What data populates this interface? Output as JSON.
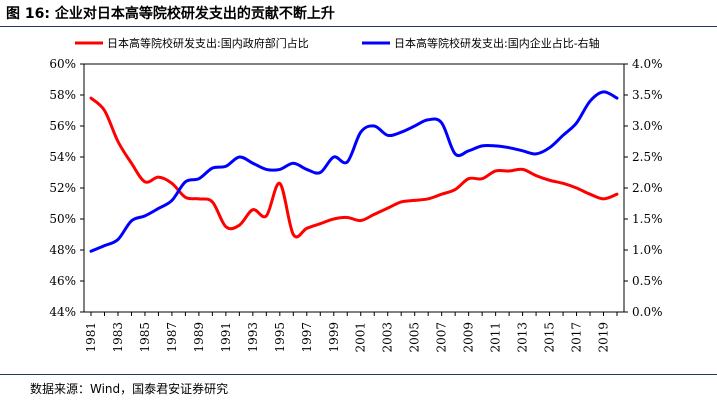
{
  "figure": {
    "title": "图 16:  企业对日本高等院校研发支出的贡献不断上升",
    "source": "数据来源：Wind，国泰君安证券研究"
  },
  "chart_data": {
    "type": "line",
    "x": [
      1981,
      1982,
      1983,
      1984,
      1985,
      1986,
      1987,
      1988,
      1989,
      1990,
      1991,
      1992,
      1993,
      1994,
      1995,
      1996,
      1997,
      1998,
      1999,
      2000,
      2001,
      2002,
      2003,
      2004,
      2005,
      2006,
      2007,
      2008,
      2009,
      2010,
      2011,
      2012,
      2013,
      2014,
      2015,
      2016,
      2017,
      2018,
      2019,
      2020
    ],
    "x_ticks": [
      1981,
      1983,
      1985,
      1987,
      1989,
      1991,
      1993,
      1995,
      1997,
      1999,
      2001,
      2003,
      2005,
      2007,
      2009,
      2011,
      2013,
      2015,
      2017,
      2019
    ],
    "series": [
      {
        "name": "日本高等院校研发支出:国内政府部门占比",
        "axis": "left",
        "color": "#ff0000",
        "values": [
          57.8,
          57.0,
          55.0,
          53.6,
          52.4,
          52.7,
          52.3,
          51.4,
          51.3,
          51.1,
          49.5,
          49.6,
          50.6,
          50.2,
          52.3,
          49.0,
          49.4,
          49.7,
          50.0,
          50.1,
          49.9,
          50.3,
          50.7,
          51.1,
          51.2,
          51.3,
          51.6,
          51.9,
          52.6,
          52.6,
          53.1,
          53.1,
          53.2,
          52.8,
          52.5,
          52.3,
          52.0,
          51.6,
          51.3,
          51.6
        ]
      },
      {
        "name": "日本高等院校研发支出:国内企业占比-右轴",
        "axis": "right",
        "color": "#0000ff",
        "values": [
          0.98,
          1.07,
          1.17,
          1.47,
          1.55,
          1.67,
          1.8,
          2.1,
          2.15,
          2.32,
          2.35,
          2.5,
          2.4,
          2.3,
          2.3,
          2.4,
          2.3,
          2.25,
          2.5,
          2.42,
          2.9,
          3.0,
          2.85,
          2.9,
          3.0,
          3.1,
          3.05,
          2.55,
          2.6,
          2.68,
          2.68,
          2.65,
          2.6,
          2.55,
          2.65,
          2.85,
          3.05,
          3.4,
          3.55,
          3.45
        ]
      }
    ],
    "y_left": {
      "min": 44,
      "max": 60,
      "ticks": [
        "44%",
        "46%",
        "48%",
        "50%",
        "52%",
        "54%",
        "56%",
        "58%",
        "60%"
      ]
    },
    "y_right": {
      "min": 0,
      "max": 4,
      "ticks": [
        "0.0%",
        "0.5%",
        "1.0%",
        "1.5%",
        "2.0%",
        "2.5%",
        "3.0%",
        "3.5%",
        "4.0%"
      ]
    },
    "grid": false,
    "legend_position": "top"
  }
}
